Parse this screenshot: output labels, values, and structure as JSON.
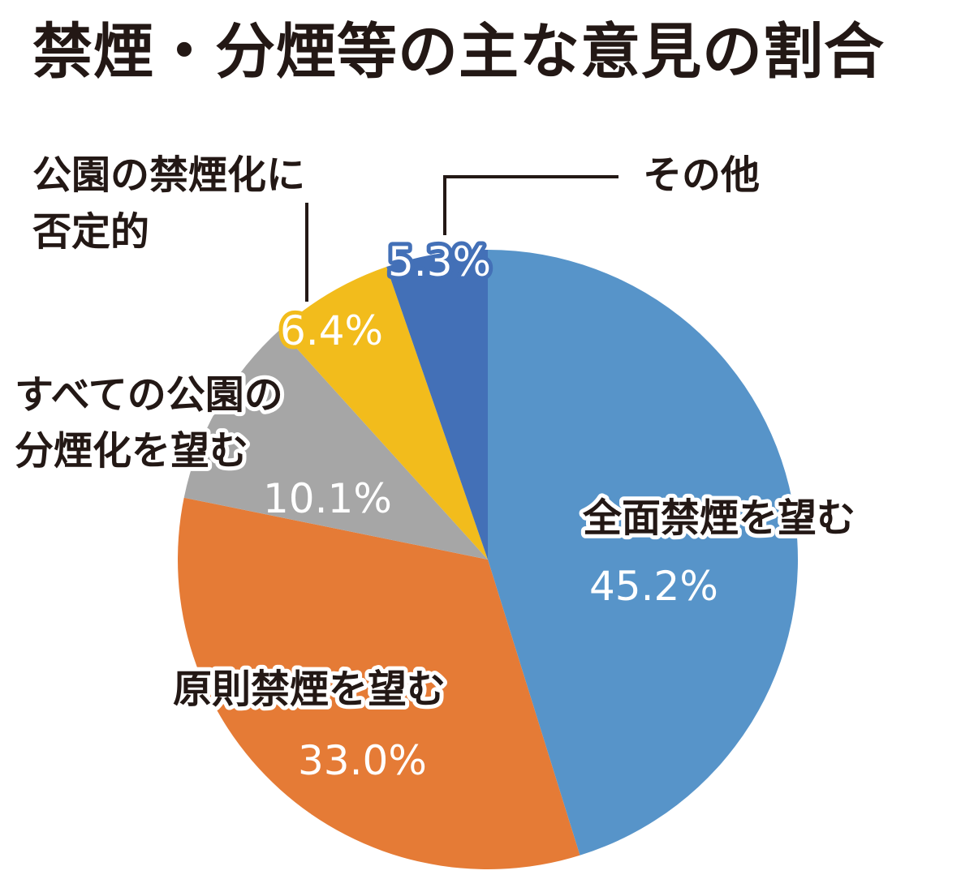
{
  "chart_data": {
    "type": "pie",
    "title": "禁煙・分煙等の主な意見の割合",
    "start_angle_deg": 0,
    "direction": "clockwise",
    "slices": [
      {
        "label_lines": [
          "全面禁煙を望む"
        ],
        "value": 45.2,
        "value_label": "45.2%",
        "color": "#5794C9"
      },
      {
        "label_lines": [
          "原則禁煙を望む"
        ],
        "value": 33.0,
        "value_label": "33.0%",
        "color": "#E57B36"
      },
      {
        "label_lines": [
          "すべての公園の",
          "分煙化を望む"
        ],
        "value": 10.1,
        "value_label": "10.1%",
        "color": "#A6A6A6"
      },
      {
        "label_lines": [
          "公園の禁煙化に",
          "否定的"
        ],
        "value": 6.4,
        "value_label": "6.4%",
        "color": "#F2BC1C"
      },
      {
        "label_lines": [
          "その他"
        ],
        "value": 5.3,
        "value_label": "5.3%",
        "color": "#4370B7"
      }
    ]
  }
}
